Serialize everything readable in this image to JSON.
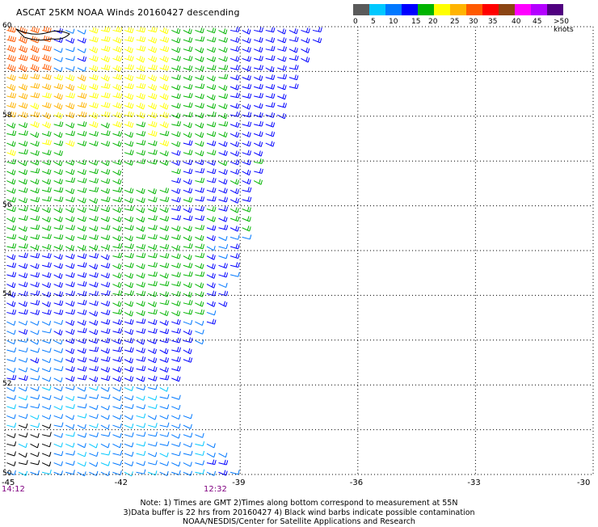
{
  "title": "ASCAT 25KM NOAA Winds 20160427 descending",
  "legend": {
    "swatch_colors": [
      "#5a5a5a",
      "#00c8ff",
      "#0078ff",
      "#0000ff",
      "#00b400",
      "#ffff00",
      "#ffb400",
      "#ff5a00",
      "#ff0000",
      "#8b4513",
      "#ff00ff",
      "#b400ff",
      "#500080"
    ],
    "labels": [
      "0",
      "5",
      "10",
      "15",
      "20",
      "25",
      "30",
      "35",
      "40",
      "45",
      ">50 knots"
    ]
  },
  "lat_labels": [
    "60",
    "58",
    "56",
    "54",
    "52",
    "50"
  ],
  "lon_labels": [
    "-45",
    "-42",
    "-39",
    "-36",
    "-33",
    "-30"
  ],
  "time_labels": [
    "14:12",
    "12:32"
  ],
  "notes": [
    "Note: 1) Times are GMT 2)Times along bottom correspond to measurement at 55N",
    "3)Data buffer is 22 hrs from 20160427 4) Black wind barbs indicate possible contamination",
    "NOAA/NESDIS/Center for Satellite Applications and Research"
  ],
  "map_data": {
    "lon_range": [
      -45,
      -30
    ],
    "lat_range": [
      50,
      60
    ],
    "grid_lons": [
      -42,
      -39,
      -36,
      -33
    ],
    "grid_lats": [
      51,
      52,
      53,
      54,
      55,
      56,
      57,
      58,
      59
    ],
    "swath_east_edge": [
      [
        -39.0,
        50.0
      ],
      [
        -40.1,
        51.0
      ],
      [
        -40.8,
        52.0
      ],
      [
        -39.6,
        53.7
      ],
      [
        -39.0,
        55.0
      ],
      [
        -38.6,
        56.7
      ],
      [
        -37.6,
        58.8
      ],
      [
        -37.0,
        60.0
      ]
    ],
    "gaps": [
      {
        "lon": -43.7,
        "lat": 57.0,
        "lon_w": 1.6,
        "lat_h": 0.3,
        "color_hint": "white"
      },
      {
        "lon": -42.0,
        "lat": 56.5,
        "lon_w": 1.0,
        "lat_h": 0.4,
        "color_hint": "white"
      }
    ],
    "speed_zones_knots": [
      {
        "lon_min": -45,
        "lon_max": -43.8,
        "lat_min": 59.0,
        "lat_max": 60.0,
        "speed": 37
      },
      {
        "lon_min": -45,
        "lon_max": -43.0,
        "lat_min": 58.0,
        "lat_max": 59.0,
        "speed": 31
      },
      {
        "lon_min": -43.0,
        "lon_max": -41.0,
        "lat_min": 58.0,
        "lat_max": 60.0,
        "speed": 28
      },
      {
        "lon_min": -45,
        "lon_max": -41.0,
        "lat_min": 57.0,
        "lat_max": 58.0,
        "speed": 24
      },
      {
        "lon_min": -41.0,
        "lon_max": -39.5,
        "lat_min": 57.5,
        "lat_max": 60.0,
        "speed": 22
      },
      {
        "lon_min": -39.5,
        "lon_max": -37.0,
        "lat_min": 57.0,
        "lat_max": 60.0,
        "speed": 17
      },
      {
        "lon_min": -41.0,
        "lon_max": -38.5,
        "lat_min": 55.5,
        "lat_max": 57.5,
        "speed": 19
      },
      {
        "lon_min": -45,
        "lon_max": -41.0,
        "lat_min": 55.0,
        "lat_max": 57.0,
        "speed": 22
      },
      {
        "lon_min": -42.5,
        "lon_max": -40.0,
        "lat_min": 53.5,
        "lat_max": 55.5,
        "speed": 22
      },
      {
        "lon_min": -45,
        "lon_max": -42.5,
        "lat_min": 53.5,
        "lat_max": 55.0,
        "speed": 18
      },
      {
        "lon_min": -45,
        "lon_max": -43.5,
        "lat_min": 52.0,
        "lat_max": 53.5,
        "speed": 14
      },
      {
        "lon_min": -43.5,
        "lon_max": -40.5,
        "lat_min": 52.0,
        "lat_max": 53.5,
        "speed": 18
      },
      {
        "lon_min": -45,
        "lon_max": -40.0,
        "lat_min": 50.0,
        "lat_max": 52.0,
        "speed": 11
      },
      {
        "lon_min": -45,
        "lon_max": -43.8,
        "lat_min": 50.2,
        "lat_max": 51.2,
        "speed": 2
      }
    ]
  }
}
